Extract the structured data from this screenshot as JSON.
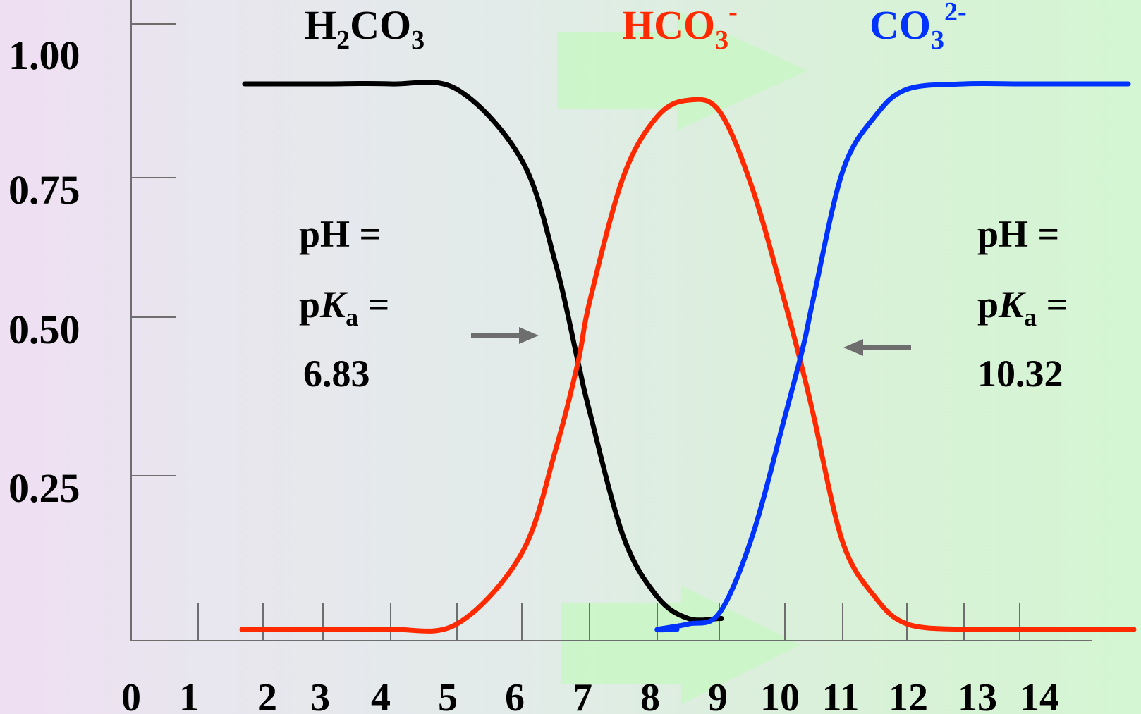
{
  "chart_data": {
    "type": "line",
    "x": [
      2,
      3,
      4,
      5,
      6,
      6.5,
      6.83,
      7,
      7.5,
      8,
      8.5,
      9,
      9.5,
      10,
      10.32,
      10.5,
      11,
      11.5,
      12,
      13,
      14
    ],
    "series": [
      {
        "name": "H2CO3",
        "color": "#000000",
        "values": [
          1.0,
          1.0,
          1.0,
          0.99,
          0.86,
          0.67,
          0.49,
          0.4,
          0.17,
          0.06,
          0.02,
          0.02,
          0.02,
          0.01,
          0.01,
          0.0,
          0.0,
          0.0,
          0.0,
          0.0,
          0.0
        ]
      },
      {
        "name": "HCO3-",
        "color": "#ff2a00",
        "values": [
          0.0,
          0.0,
          0.0,
          0.01,
          0.14,
          0.33,
          0.49,
          0.6,
          0.83,
          0.94,
          0.97,
          0.95,
          0.81,
          0.6,
          0.47,
          0.39,
          0.16,
          0.06,
          0.01,
          0.0,
          0.0
        ]
      },
      {
        "name": "CO32-",
        "color": "#0033ff",
        "values": [
          0.0,
          0.0,
          0.0,
          0.0,
          0.0,
          0.0,
          0.0,
          0.0,
          0.0,
          0.0,
          0.01,
          0.03,
          0.17,
          0.39,
          0.52,
          0.61,
          0.84,
          0.94,
          0.99,
          1.0,
          1.0
        ]
      }
    ],
    "yticks": [
      "0.25",
      "0.50",
      "0.75",
      "1.00"
    ],
    "ytick_values": [
      0.25,
      0.5,
      0.75,
      1.0
    ],
    "xticks": [
      "0",
      "1",
      "2",
      "3",
      "4",
      "5",
      "6",
      "7",
      "8",
      "9",
      "10",
      "11",
      "12",
      "13",
      "14"
    ],
    "xlim": [
      0,
      14
    ],
    "ylim": [
      0,
      1.0
    ],
    "grid": false
  },
  "labels": {
    "h2co3": {
      "base": "H",
      "sub1": "2",
      "mid": "CO",
      "sub2": "3"
    },
    "hco3": {
      "base": "HCO",
      "sub": "3",
      "sup": "-"
    },
    "co3": {
      "base": "CO",
      "sub": "3",
      "sup": "2-"
    },
    "left_annotation": {
      "line1": "pH =",
      "line2_p": "p",
      "line2_K": "K",
      "line2_a": "a",
      "line2_eq": " =",
      "line3": "6.83"
    },
    "right_annotation": {
      "line1": "pH =",
      "line2_p": "p",
      "line2_K": "K",
      "line2_a": "a",
      "line2_eq": " =",
      "line3": "10.32"
    }
  },
  "colors": {
    "h2co3": "#000000",
    "hco3": "#ff2a00",
    "co3": "#0033ff",
    "axis": "#6e6e6e",
    "arrow": "#6e6e6e"
  }
}
